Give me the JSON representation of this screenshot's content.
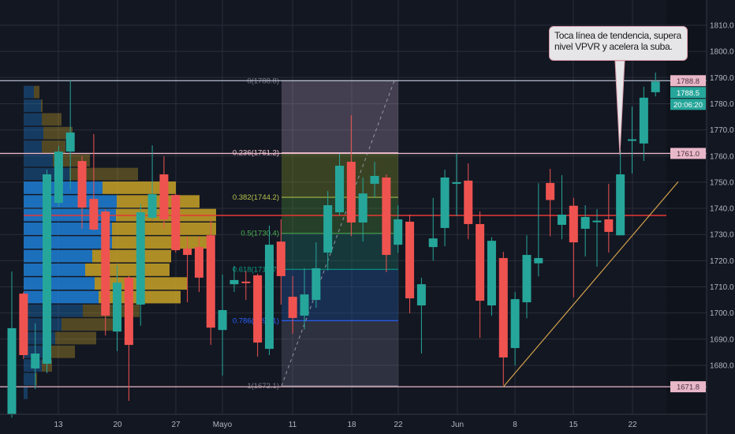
{
  "colors": {
    "background": "#131722",
    "up": "#26a69a",
    "down": "#ef5350",
    "grid": "#2a2e39",
    "poc": "#e53935",
    "trendline": "#d4a24a",
    "vp_up": "#1e7fd6",
    "vp_down": "#c9a227"
  },
  "note": {
    "text": "Toca línea de tendencia, supera nivel VPVR y acelera la suba."
  },
  "chart_data": {
    "type": "candlestick",
    "ylim": [
      1661,
      1820
    ],
    "y_ticks": [
      "1810.0",
      "1800.0",
      "1790.0",
      "1780.0",
      "1770.0",
      "1760.0",
      "1750.0",
      "1740.0",
      "1730.0",
      "1720.0",
      "1710.0",
      "1700.0",
      "1690.0",
      "1680.0"
    ],
    "x_labels": [
      "13",
      "20",
      "27",
      "Mayo",
      "11",
      "18",
      "22",
      "Jun",
      "8",
      "15",
      "22"
    ],
    "candles": [
      [
        1661.3,
        1715.9,
        1660,
        1694.2
      ],
      [
        1707.4,
        1708,
        1682.4,
        1683.9
      ],
      [
        1678.8,
        1696,
        1670.9,
        1684.5
      ],
      [
        1680.6,
        1754.8,
        1677,
        1753
      ],
      [
        1742.1,
        1763.8,
        1740.6,
        1761.7
      ],
      [
        1761.7,
        1788.9,
        1747.2,
        1769
      ],
      [
        1758.1,
        1759.9,
        1732.2,
        1740.3
      ],
      [
        1743.6,
        1768.4,
        1731.6,
        1731.9
      ],
      [
        1738.8,
        1739.7,
        1691.4,
        1699
      ],
      [
        1692.9,
        1718.3,
        1685.4,
        1711.6
      ],
      [
        1713.5,
        1714.1,
        1666.4,
        1687.8
      ],
      [
        1703.2,
        1741.8,
        1695.1,
        1738.5
      ],
      [
        1736.4,
        1764.1,
        1735.8,
        1745.4
      ],
      [
        1753,
        1759.9,
        1732.2,
        1735.8
      ],
      [
        1745.1,
        1745.7,
        1723.1,
        1724
      ],
      [
        1724.6,
        1729.1,
        1704.1,
        1722.2
      ],
      [
        1725.2,
        1729.1,
        1708,
        1713.5
      ],
      [
        1729.7,
        1735.8,
        1687.8,
        1694.4
      ],
      [
        1693.5,
        1714.7,
        1676.1,
        1701.1
      ],
      [
        1711,
        1718,
        1708,
        1712.6
      ],
      [
        1712,
        1716,
        1705,
        1711.4
      ],
      [
        1714.4,
        1715,
        1683.3,
        1688.7
      ],
      [
        1686.3,
        1733.4,
        1683.9,
        1726.1
      ],
      [
        1727.3,
        1735.8,
        1703.2,
        1714.1
      ],
      [
        1706.2,
        1714.1,
        1692,
        1698.1
      ],
      [
        1699,
        1717.1,
        1693.8,
        1707.1
      ],
      [
        1705,
        1727,
        1702,
        1717.1
      ],
      [
        1723.1,
        1746.6,
        1716.2,
        1741.2
      ],
      [
        1738.5,
        1760.8,
        1737.3,
        1756.3
      ],
      [
        1757.8,
        1775.6,
        1729.4,
        1734.6
      ],
      [
        1734.6,
        1751.8,
        1727.3,
        1745.7
      ],
      [
        1749.4,
        1757.8,
        1744.2,
        1752.4
      ],
      [
        1751.8,
        1753,
        1715.6,
        1722.2
      ],
      [
        1726.1,
        1741.2,
        1723,
        1735.8
      ],
      [
        1734.9,
        1737.6,
        1699.9,
        1705.6
      ],
      [
        1702.9,
        1713.5,
        1684.5,
        1711
      ],
      [
        1725.2,
        1744,
        1720,
        1728.5
      ],
      [
        1732.5,
        1754.8,
        1725.5,
        1751.8
      ],
      [
        1749.4,
        1761,
        1737,
        1750
      ],
      [
        1750.6,
        1757.2,
        1728.2,
        1734
      ],
      [
        1734,
        1738.8,
        1690.5,
        1704.7
      ],
      [
        1702.9,
        1729,
        1699,
        1727.6
      ],
      [
        1721,
        1723.4,
        1672.4,
        1683
      ],
      [
        1686.6,
        1708,
        1680,
        1705.3
      ],
      [
        1704.1,
        1729.7,
        1698,
        1722.2
      ],
      [
        1719,
        1749.6,
        1714,
        1721
      ],
      [
        1749.7,
        1755.1,
        1729.3,
        1743.2
      ],
      [
        1733.7,
        1752.7,
        1728.2,
        1737.6
      ],
      [
        1741,
        1744,
        1706,
        1727
      ],
      [
        1732.2,
        1741.2,
        1721.6,
        1736.7
      ],
      [
        1734.8,
        1739.7,
        1717.7,
        1735.3
      ],
      [
        1735.8,
        1749.4,
        1723.1,
        1731
      ],
      [
        1729.7,
        1762.3,
        1729.7,
        1753
      ],
      [
        1766.1,
        1778.9,
        1753.3,
        1766.4
      ],
      [
        1764.8,
        1786.5,
        1758.1,
        1782.3
      ],
      [
        1784.4,
        1791.9,
        1782.8,
        1788.5
      ]
    ],
    "horizontal_levels": [
      {
        "price": 1788.8,
        "label": "1788.8",
        "color": "#b8c0d0"
      },
      {
        "price": 1761.0,
        "label": "1761.0",
        "color": "#e9b8c8"
      },
      {
        "price": 1671.8,
        "label": "1671.8",
        "color": "#e9b8c8"
      }
    ],
    "poc_level": 1737.3,
    "current_price": {
      "label": "1788.5",
      "countdown": "20:06:20"
    },
    "trendline": {
      "from": [
        42,
        1671.8
      ],
      "to": [
        56,
        1750.2
      ]
    },
    "fibonacci": {
      "high": 1788.8,
      "low": 1672.1,
      "levels": [
        {
          "ratio": 0,
          "label": "0(1788.8)",
          "color": "#787b86"
        },
        {
          "ratio": 0.236,
          "label": "0.236(1761.2)",
          "color": "#f2c6d4"
        },
        {
          "ratio": 0.382,
          "label": "0.382(1744.2)",
          "color": "#b5c34a"
        },
        {
          "ratio": 0.5,
          "label": "0.5(1730.4)",
          "color": "#4caf50"
        },
        {
          "ratio": 0.618,
          "label": "0.618(1716.7)",
          "color": "#089981"
        },
        {
          "ratio": 0.786,
          "label": "0.786(1697.1)",
          "color": "#2962ff"
        },
        {
          "ratio": 1,
          "label": "1(1672.1)",
          "color": "#787b86"
        }
      ],
      "zone_colors": [
        "rgba(170,150,180,0.32)",
        "rgba(120,140,40,0.38)",
        "rgba(70,130,50,0.38)",
        "rgba(30,110,100,0.38)",
        "rgba(30,80,150,0.42)",
        "rgba(120,120,140,0.28)"
      ]
    },
    "vpvr": {
      "price_top": 1787.0,
      "price_bottom": 1666.8,
      "value_area_rows": [
        7,
        15
      ],
      "rows": [
        [
          13,
          7
        ],
        [
          22,
          2
        ],
        [
          23,
          25
        ],
        [
          25,
          37
        ],
        [
          23,
          30
        ],
        [
          37,
          47
        ],
        [
          58,
          87
        ],
        [
          100,
          93
        ],
        [
          118,
          105
        ],
        [
          117,
          127
        ],
        [
          112,
          132
        ],
        [
          112,
          122
        ],
        [
          87,
          100
        ],
        [
          78,
          107
        ],
        [
          90,
          117
        ],
        [
          95,
          104
        ],
        [
          75,
          72
        ],
        [
          48,
          68
        ],
        [
          40,
          52
        ],
        [
          35,
          30
        ],
        [
          23,
          13
        ],
        [
          15,
          2
        ],
        [
          5,
          0
        ]
      ]
    }
  }
}
